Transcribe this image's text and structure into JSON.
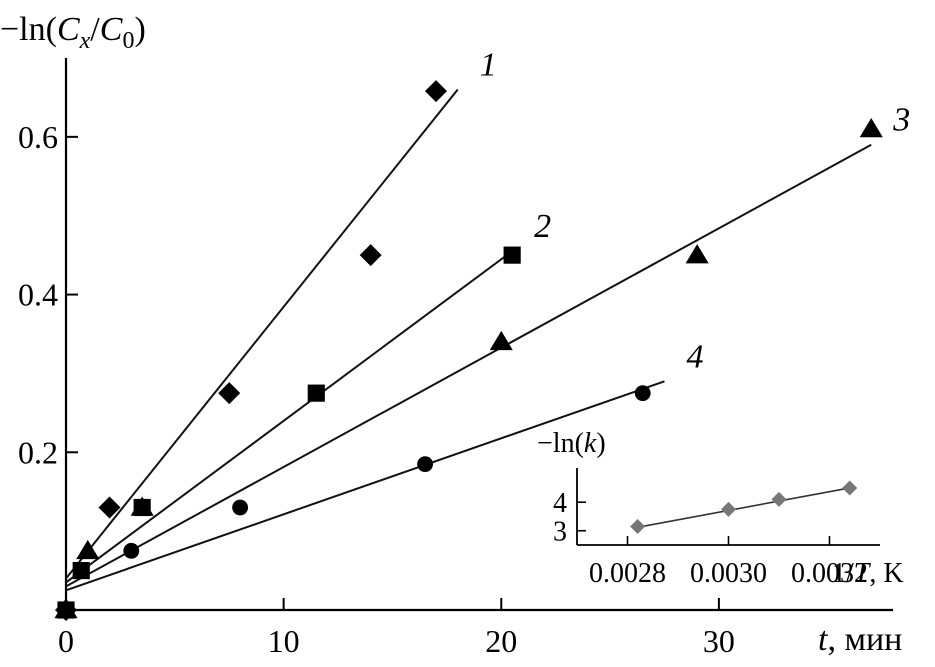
{
  "chart_data": [
    {
      "type": "scatter",
      "ylabel": {
        "prefix": "−ln(",
        "num": "C",
        "num_sub": "x",
        "slash": "/",
        "den": "C",
        "den_sub": "0",
        "suffix": ")"
      },
      "xlabel": {
        "var": "t",
        "unit": ", мин"
      },
      "xlim": [
        0,
        38
      ],
      "ylim": [
        0,
        0.7
      ],
      "x_ticks": [
        {
          "value": 0,
          "label": "0"
        },
        {
          "value": 10,
          "label": "10"
        },
        {
          "value": 20,
          "label": "20"
        },
        {
          "value": 30,
          "label": "30"
        }
      ],
      "y_ticks": [
        {
          "value": 0.2,
          "label": "0.2"
        },
        {
          "value": 0.4,
          "label": "0.4"
        },
        {
          "value": 0.6,
          "label": "0.6"
        }
      ],
      "grid": false,
      "series": [
        {
          "name": "1",
          "marker": "diamond",
          "points": [
            [
              0,
              0
            ],
            [
              2,
              0.13
            ],
            [
              7.5,
              0.275
            ],
            [
              14,
              0.45
            ],
            [
              17,
              0.658
            ]
          ],
          "fit_line": [
            [
              0,
              0.04
            ],
            [
              18,
              0.66
            ]
          ]
        },
        {
          "name": "2",
          "marker": "square",
          "points": [
            [
              0,
              0
            ],
            [
              0.7,
              0.05
            ],
            [
              3.5,
              0.13
            ],
            [
              11.5,
              0.275
            ],
            [
              20.5,
              0.45
            ]
          ],
          "fit_line": [
            [
              0,
              0.035
            ],
            [
              20.5,
              0.455
            ]
          ]
        },
        {
          "name": "3",
          "marker": "triangle",
          "points": [
            [
              0,
              0
            ],
            [
              1,
              0.075
            ],
            [
              3.5,
              0.13
            ],
            [
              20,
              0.34
            ],
            [
              29,
              0.45
            ],
            [
              37,
              0.61
            ]
          ],
          "fit_line": [
            [
              0,
              0.03
            ],
            [
              37,
              0.59
            ]
          ]
        },
        {
          "name": "4",
          "marker": "circle",
          "points": [
            [
              0,
              0
            ],
            [
              3,
              0.075
            ],
            [
              8,
              0.13
            ],
            [
              16.5,
              0.185
            ],
            [
              26.5,
              0.275
            ]
          ],
          "fit_line": [
            [
              0,
              0.025
            ],
            [
              27.5,
              0.29
            ]
          ]
        }
      ]
    },
    {
      "type": "scatter",
      "inset": true,
      "ylabel": {
        "prefix": "−ln(",
        "var": "k",
        "suffix": ")"
      },
      "xlabel": {
        "prefix": "1/",
        "var": "T",
        "unit": ", K"
      },
      "xlim": [
        0.0027,
        0.0033
      ],
      "ylim": [
        2.5,
        5.2
      ],
      "x_ticks": [
        {
          "value": 0.0028,
          "label": "0.0028"
        },
        {
          "value": 0.003,
          "label": "0.0030"
        },
        {
          "value": 0.0032,
          "label": "0.0032"
        }
      ],
      "y_ticks": [
        {
          "value": 3,
          "label": "3"
        },
        {
          "value": 4,
          "label": "4"
        }
      ],
      "series": [
        {
          "marker": "diamond",
          "color": "#777777",
          "points": [
            [
              0.00282,
              3.15
            ],
            [
              0.003,
              3.75
            ],
            [
              0.0031,
              4.1
            ],
            [
              0.00324,
              4.5
            ]
          ],
          "fit_line": [
            [
              0.00282,
              3.12
            ],
            [
              0.00324,
              4.5
            ]
          ]
        }
      ]
    }
  ]
}
